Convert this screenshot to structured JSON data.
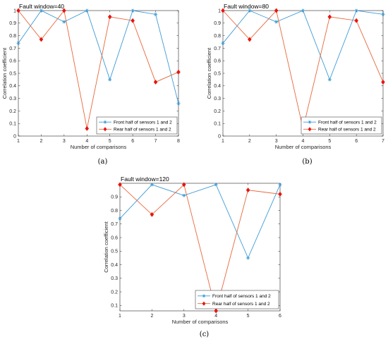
{
  "colors": {
    "front": "#3d9bd6",
    "rear": "#e8673a",
    "rear_marker": "#e8140d"
  },
  "chart_data": [
    {
      "type": "line",
      "title": "Fault window=40",
      "caption": "(a)",
      "xlabel": "Number of comparisons",
      "ylabel": "Correlation coefficient",
      "xlim": [
        1,
        8
      ],
      "ylim": [
        0,
        1
      ],
      "xticks": [
        1,
        2,
        3,
        4,
        5,
        6,
        7,
        8
      ],
      "yticks": [
        0,
        0.1,
        0.2,
        0.3,
        0.4,
        0.5,
        0.6,
        0.7,
        0.8,
        0.9,
        1
      ],
      "ytick_labels": [
        "0",
        "0.1",
        "0.2",
        "0.3",
        "0.4",
        "0.5",
        "0.6",
        "0.7",
        "0.8",
        "0.9",
        "1"
      ],
      "legend_position": "lower-right",
      "series": [
        {
          "name": "Front half of sensors 1 and 2",
          "marker": "star",
          "x": [
            1,
            2,
            3,
            4,
            5,
            6,
            7,
            8
          ],
          "y": [
            0.74,
            1.0,
            0.91,
            1.0,
            0.45,
            1.0,
            0.97,
            0.26
          ]
        },
        {
          "name": "Rear half of sensors 1 and 2",
          "marker": "diamond",
          "x": [
            1,
            2,
            3,
            4,
            5,
            6,
            7,
            8
          ],
          "y": [
            1.0,
            0.77,
            1.0,
            0.06,
            0.95,
            0.92,
            0.43,
            0.51
          ]
        }
      ]
    },
    {
      "type": "line",
      "title": "Fault window=80",
      "caption": "(b)",
      "xlabel": "Number of comparisons",
      "ylabel": "Correlation coefficient",
      "xlim": [
        1,
        7
      ],
      "ylim": [
        0,
        1
      ],
      "xticks": [
        1,
        2,
        3,
        4,
        5,
        6,
        7
      ],
      "yticks": [
        0,
        0.1,
        0.2,
        0.3,
        0.4,
        0.5,
        0.6,
        0.7,
        0.8,
        0.9,
        1
      ],
      "ytick_labels": [
        "0",
        "0.1",
        "0.2",
        "0.3",
        "0.4",
        "0.5",
        "0.6",
        "0.7",
        "0.8",
        "0.9",
        "1"
      ],
      "legend_position": "lower-right",
      "series": [
        {
          "name": "Front half of sensors 1 and 2",
          "marker": "star",
          "x": [
            1,
            2,
            3,
            4,
            5,
            6,
            7
          ],
          "y": [
            0.74,
            1.0,
            0.91,
            1.0,
            0.45,
            1.0,
            0.97
          ]
        },
        {
          "name": "Rear half of sensors 1 and 2",
          "marker": "diamond",
          "x": [
            1,
            2,
            3,
            4,
            5,
            6,
            7
          ],
          "y": [
            1.0,
            0.77,
            1.0,
            0.06,
            0.95,
            0.92,
            0.43
          ]
        }
      ]
    },
    {
      "type": "line",
      "title": "Fault window=120",
      "caption": "(c)",
      "xlabel": "Number of comparisons",
      "ylabel": "Correlation coefficient",
      "xlim": [
        1,
        6
      ],
      "ylim": [
        0.06,
        1
      ],
      "xticks": [
        1,
        2,
        3,
        4,
        5,
        6
      ],
      "yticks": [
        0.1,
        0.2,
        0.3,
        0.4,
        0.5,
        0.6,
        0.7,
        0.8,
        0.9
      ],
      "ytick_labels": [
        "0.1",
        "0.2",
        "0.3",
        "0.4",
        "0.5",
        "0.6",
        "0.7",
        "0.8",
        "0.9"
      ],
      "legend_position": "lower-right",
      "series": [
        {
          "name": "Front half of sensors 1 and 2",
          "marker": "star",
          "x": [
            1,
            2,
            3,
            4,
            5,
            6
          ],
          "y": [
            0.74,
            0.99,
            0.91,
            0.99,
            0.45,
            0.99
          ]
        },
        {
          "name": "Rear half of sensors 1 and 2",
          "marker": "diamond",
          "x": [
            1,
            2,
            3,
            4,
            5,
            6
          ],
          "y": [
            0.99,
            0.77,
            0.99,
            0.06,
            0.95,
            0.92
          ]
        }
      ]
    }
  ]
}
